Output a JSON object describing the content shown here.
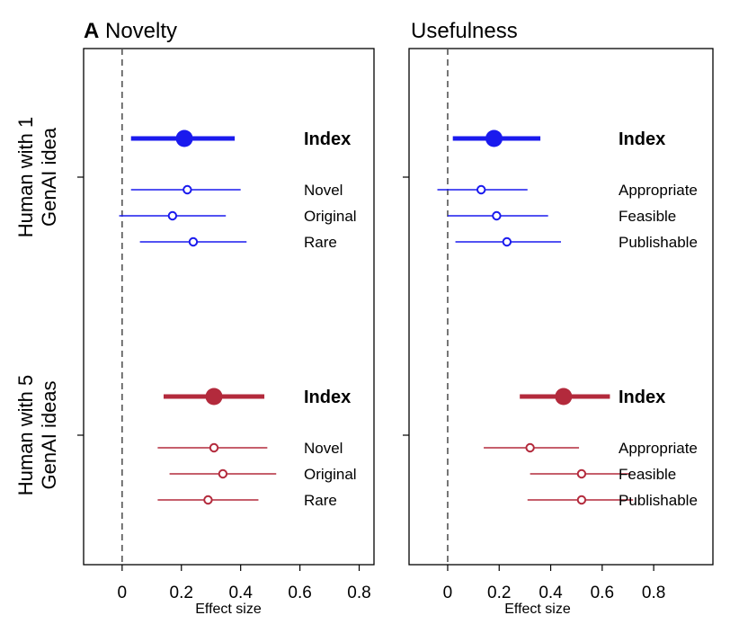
{
  "chart_data": [
    {
      "type": "forest",
      "panel_label": "A",
      "title": "Novelty",
      "xlabel": "Effect size",
      "xlim": [
        -0.13,
        0.85
      ],
      "xticks": [
        "0",
        "0.2",
        "0.4",
        "0.6",
        "0.8"
      ],
      "xtick_values": [
        0,
        0.2,
        0.4,
        0.6,
        0.8
      ],
      "reference_line": 0,
      "groups": [
        {
          "label": "Human with 1 GenAI idea",
          "color": "#1a1aee",
          "rows": [
            {
              "name": "Index",
              "estimate": 0.21,
              "lower": 0.03,
              "upper": 0.38,
              "index": true
            },
            {
              "name": "Novel",
              "estimate": 0.22,
              "lower": 0.03,
              "upper": 0.4
            },
            {
              "name": "Original",
              "estimate": 0.17,
              "lower": -0.01,
              "upper": 0.35
            },
            {
              "name": "Rare",
              "estimate": 0.24,
              "lower": 0.06,
              "upper": 0.42
            }
          ]
        },
        {
          "label": "Human with 5 GenAI ideas",
          "color": "#b32a3c",
          "rows": [
            {
              "name": "Index",
              "estimate": 0.31,
              "lower": 0.14,
              "upper": 0.48,
              "index": true
            },
            {
              "name": "Novel",
              "estimate": 0.31,
              "lower": 0.12,
              "upper": 0.49
            },
            {
              "name": "Original",
              "estimate": 0.34,
              "lower": 0.16,
              "upper": 0.52
            },
            {
              "name": "Rare",
              "estimate": 0.29,
              "lower": 0.12,
              "upper": 0.46
            }
          ]
        }
      ]
    },
    {
      "type": "forest",
      "title": "Usefulness",
      "xlabel": "Effect size",
      "xlim": [
        -0.15,
        1.03
      ],
      "xticks": [
        "0",
        "0.2",
        "0.4",
        "0.6",
        "0.8"
      ],
      "xtick_values": [
        0,
        0.2,
        0.4,
        0.6,
        0.8
      ],
      "reference_line": 0,
      "groups": [
        {
          "label": "Human with 1 GenAI idea",
          "color": "#1a1aee",
          "rows": [
            {
              "name": "Index",
              "estimate": 0.18,
              "lower": 0.02,
              "upper": 0.36,
              "index": true
            },
            {
              "name": "Appropriate",
              "estimate": 0.13,
              "lower": -0.04,
              "upper": 0.31
            },
            {
              "name": "Feasible",
              "estimate": 0.19,
              "lower": 0.0,
              "upper": 0.39
            },
            {
              "name": "Publishable",
              "estimate": 0.23,
              "lower": 0.03,
              "upper": 0.44
            }
          ]
        },
        {
          "label": "Human with 5 GenAI ideas",
          "color": "#b32a3c",
          "rows": [
            {
              "name": "Index",
              "estimate": 0.45,
              "lower": 0.28,
              "upper": 0.63,
              "index": true
            },
            {
              "name": "Appropriate",
              "estimate": 0.32,
              "lower": 0.14,
              "upper": 0.51
            },
            {
              "name": "Feasible",
              "estimate": 0.52,
              "lower": 0.32,
              "upper": 0.71
            },
            {
              "name": "Publishable",
              "estimate": 0.52,
              "lower": 0.31,
              "upper": 0.72
            }
          ]
        }
      ]
    }
  ]
}
